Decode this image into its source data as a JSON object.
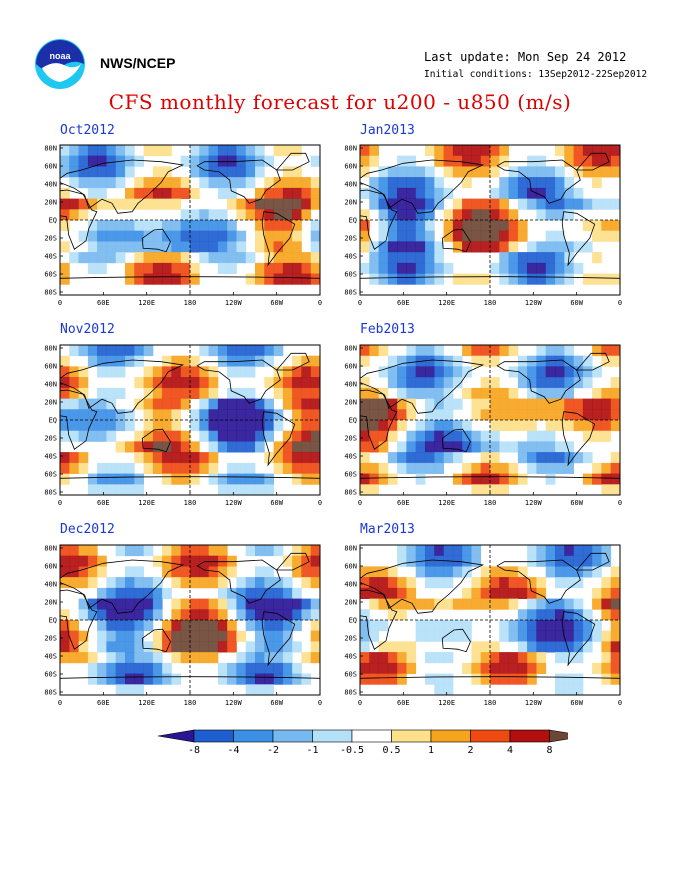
{
  "header": {
    "agency": "NWS/NCEP",
    "last_update": "Last update: Mon Sep 24 2012",
    "initial_conditions": "Initial conditions: 13Sep2012-22Sep2012",
    "title": "CFS monthly forecast for u200 - u850 (m/s)"
  },
  "logo": {
    "text": "noaa",
    "colors": {
      "outer": "#1ec8f0",
      "inner": "#1a2fa8",
      "bird": "#ffffff"
    }
  },
  "axes": {
    "lat_ticks": [
      "80N",
      "60N",
      "40N",
      "20N",
      "EQ",
      "20S",
      "40S",
      "60S",
      "80S"
    ],
    "lon_ticks": [
      "0",
      "60E",
      "120E",
      "180",
      "120W",
      "60W",
      "0"
    ]
  },
  "panels": [
    {
      "id": "oct2012",
      "title": "Oct2012"
    },
    {
      "id": "jan2013",
      "title": "Jan2013"
    },
    {
      "id": "nov2012",
      "title": "Nov2012"
    },
    {
      "id": "feb2013",
      "title": "Feb2013"
    },
    {
      "id": "dec2012",
      "title": "Dec2012"
    },
    {
      "id": "mar2013",
      "title": "Mar2013"
    }
  ],
  "colorbar": {
    "labels": [
      "-8",
      "-4",
      "-2",
      "-1",
      "-0.5",
      "0.5",
      "1",
      "2",
      "4",
      "8"
    ],
    "colors": [
      "#2a1596",
      "#1e5fd0",
      "#3c8fe6",
      "#78b8f0",
      "#b4e0f8",
      "#ffffff",
      "#fde08a",
      "#f6a41e",
      "#ee4a12",
      "#b20e0e",
      "#6e4636"
    ]
  }
}
